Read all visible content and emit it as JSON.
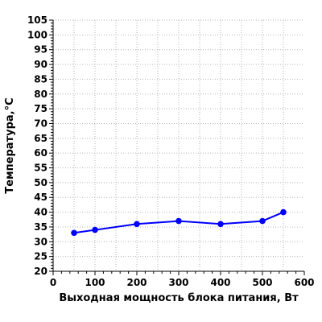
{
  "chart_data": {
    "type": "line",
    "xlabel": "Выходная мощность блока питания, Вт",
    "ylabel": "Температура,°С",
    "xlim": [
      0,
      600
    ],
    "ylim": [
      20,
      105
    ],
    "x_ticks": [
      0,
      100,
      200,
      300,
      400,
      500,
      600
    ],
    "y_ticks": [
      20,
      25,
      30,
      35,
      40,
      45,
      50,
      55,
      60,
      65,
      70,
      75,
      80,
      85,
      90,
      95,
      100,
      105
    ],
    "grid": true,
    "series": [
      {
        "x": [
          50,
          100,
          200,
          300,
          400,
          500,
          550
        ],
        "y": [
          33,
          34,
          36,
          37,
          36,
          37,
          40
        ],
        "color": "#0000ff"
      }
    ]
  }
}
